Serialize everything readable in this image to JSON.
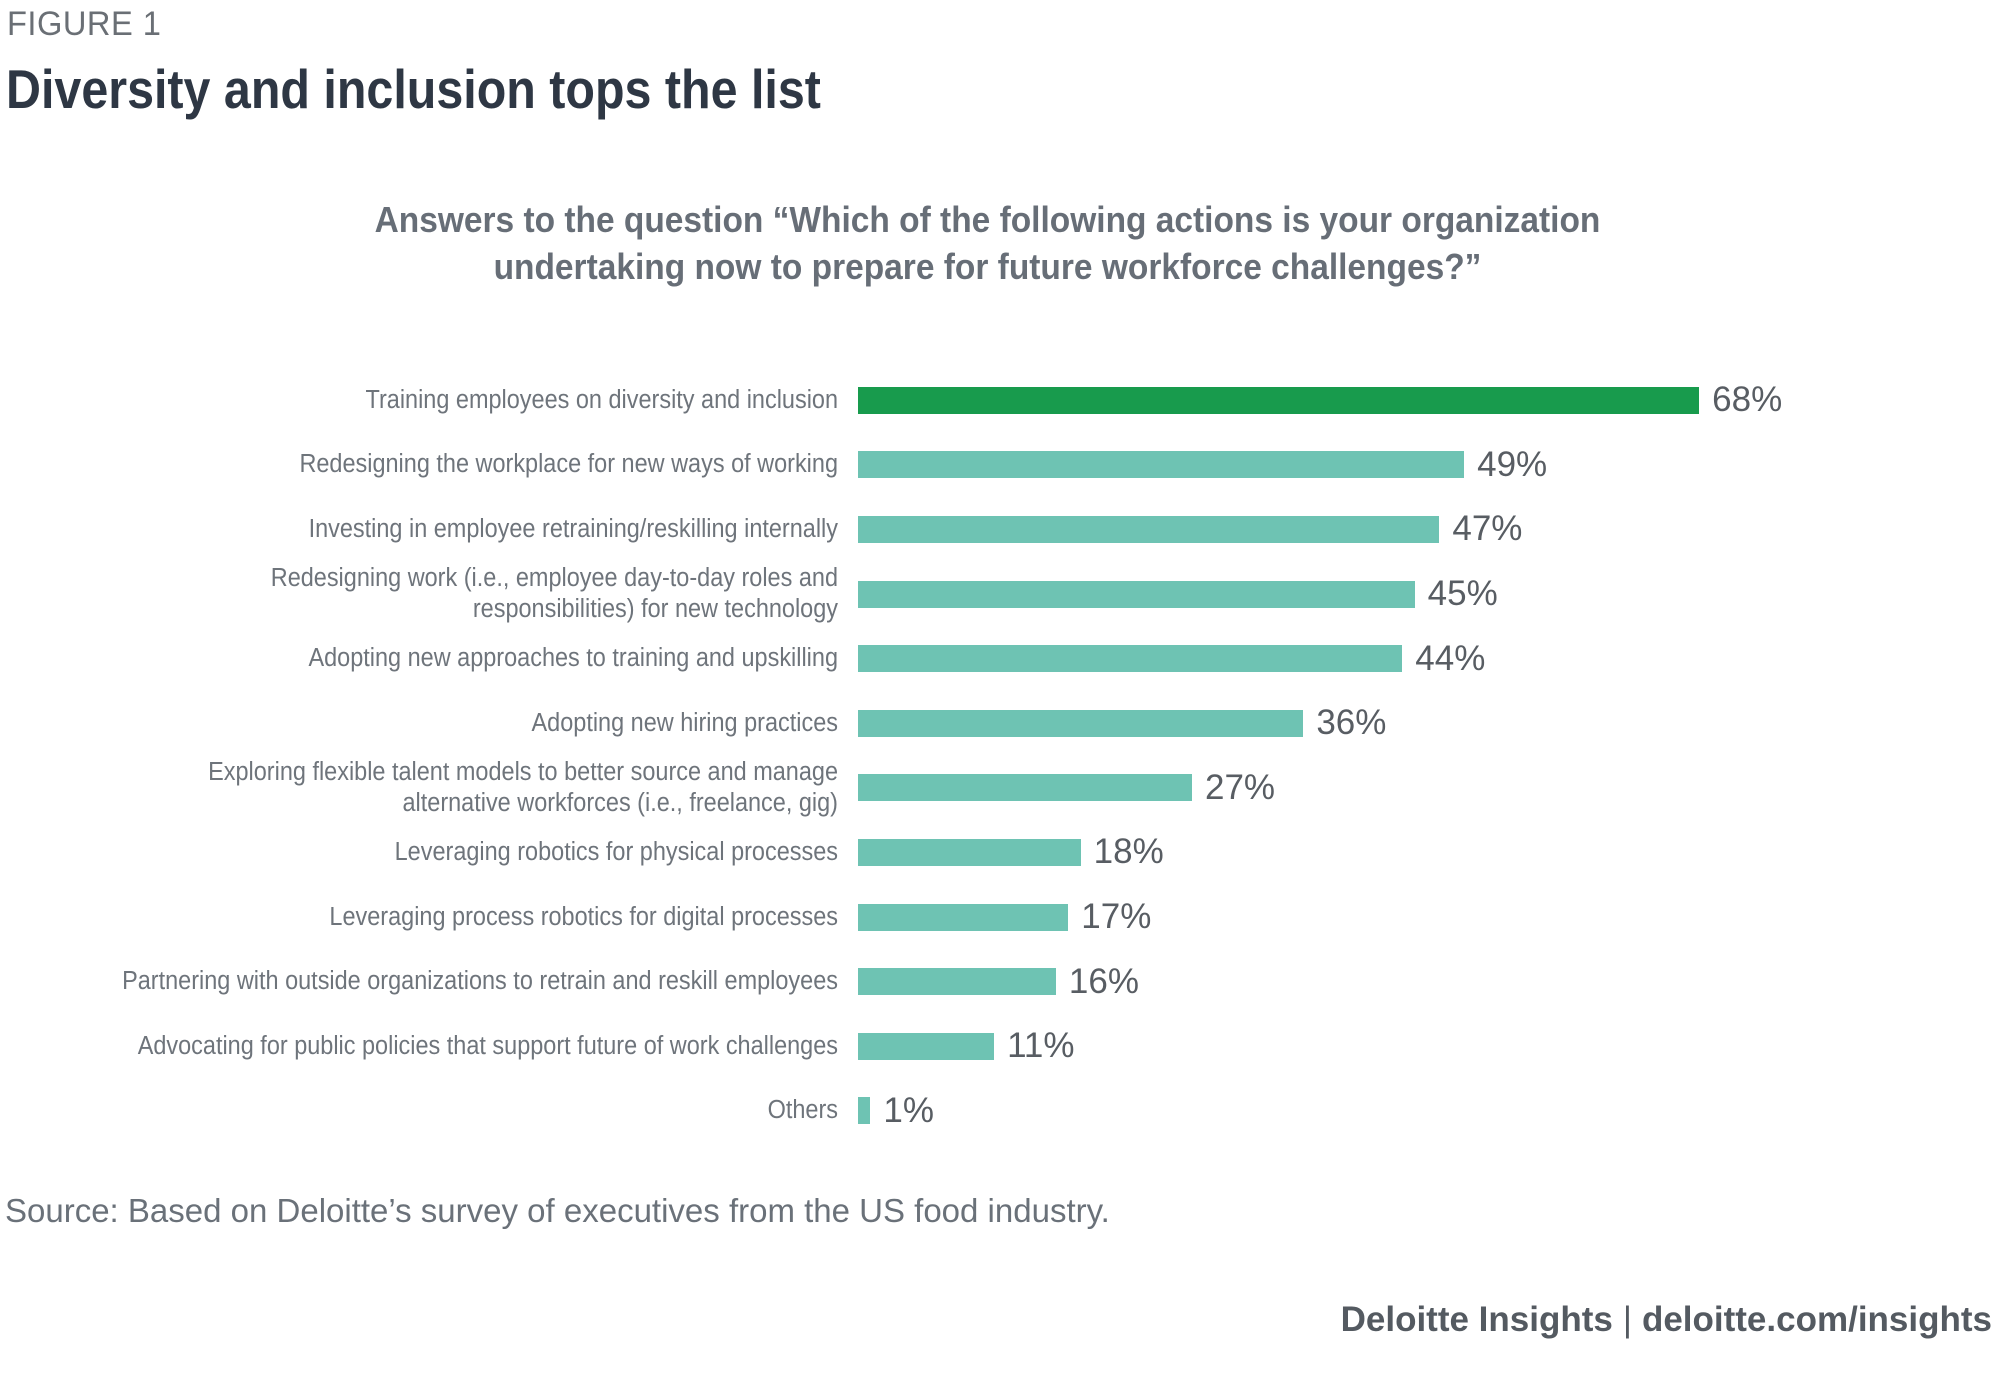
{
  "figure_label": "FIGURE 1",
  "title": "Diversity and inclusion tops the list",
  "subtitle": {
    "lines": [
      "Answers to the question “Which of the following actions is your organization",
      "undertaking now to prepare for future workforce challenges?”"
    ]
  },
  "chart_data": {
    "type": "bar",
    "orientation": "horizontal",
    "axis": "none",
    "legend": "none",
    "unit": "%",
    "xlim": [
      0,
      100
    ],
    "categories": [
      "Training employees on diversity and inclusion",
      "Redesigning the workplace for new ways of working",
      "Investing in employee retraining/reskilling internally",
      "Redesigning work (i.e., employee day-to-day roles and responsibilities) for new technology",
      "Adopting new approaches to training and upskilling",
      "Adopting new hiring practices",
      "Exploring flexible talent models to better source and manage alternative workforces (i.e., freelance, gig)",
      "Leveraging robotics for physical processes",
      "Leveraging process robotics for digital processes",
      "Partnering with outside organizations to retrain and reskill employees",
      "Advocating for public policies that support future of work challenges",
      "Others"
    ],
    "category_lines": [
      [
        "Training employees on diversity and inclusion"
      ],
      [
        "Redesigning the workplace for new ways of working"
      ],
      [
        "Investing in employee retraining/reskilling internally"
      ],
      [
        "Redesigning work (i.e., employee day-to-day roles and",
        "responsibilities) for new technology"
      ],
      [
        "Adopting new approaches to training and upskilling"
      ],
      [
        "Adopting new hiring practices"
      ],
      [
        "Exploring flexible talent models to better source and manage",
        "alternative workforces (i.e., freelance, gig)"
      ],
      [
        "Leveraging robotics for physical processes"
      ],
      [
        "Leveraging process robotics for digital processes"
      ],
      [
        "Partnering with outside organizations to retrain and reskill employees"
      ],
      [
        "Advocating for public policies that support future of work challenges"
      ],
      [
        "Others"
      ]
    ],
    "values": [
      68,
      49,
      47,
      45,
      44,
      36,
      27,
      18,
      17,
      16,
      11,
      1
    ],
    "value_labels": [
      "68%",
      "49%",
      "47%",
      "45%",
      "44%",
      "36%",
      "27%",
      "18%",
      "17%",
      "16%",
      "11%",
      "1%"
    ],
    "bar_color": "#6ec3b3",
    "highlight_color": "#189b4d",
    "highlight_index": 0
  },
  "source": "Source: Based on Deloitte’s survey of executives from the US food industry.",
  "footer": {
    "brand": "Deloitte Insights",
    "divider": "|",
    "site": "deloitte.com/insights"
  },
  "colors": {
    "title_text": "#2e3744",
    "subtitle_text": "#676e77",
    "category_text": "#6e747b",
    "value_text": "#585d63",
    "bar_teal": "#6ec3b3",
    "bar_green": "#189b4d"
  }
}
